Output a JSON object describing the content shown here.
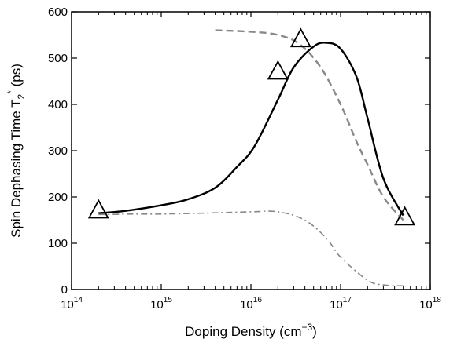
{
  "chart_data": {
    "type": "line",
    "title": "",
    "xlabel": {
      "text": "Doping Density (cm",
      "sup": "−3",
      "tail": ")"
    },
    "ylabel": {
      "text": "Spin Dephasing Time T",
      "sub": "2",
      "sup": "*",
      "tail": " (ps)"
    },
    "x_scale": "log",
    "xlim": [
      100000000000000.0,
      1e+18
    ],
    "ylim": [
      0,
      600
    ],
    "x_ticks": [
      {
        "value": 100000000000000.0,
        "base": "10",
        "exp": "14"
      },
      {
        "value": 1000000000000000.0,
        "base": "10",
        "exp": "15"
      },
      {
        "value": 1e+16,
        "base": "10",
        "exp": "16"
      },
      {
        "value": 1e+17,
        "base": "10",
        "exp": "17"
      },
      {
        "value": 1e+18,
        "base": "10",
        "exp": "18"
      }
    ],
    "y_ticks": [
      {
        "value": 0,
        "label": "0"
      },
      {
        "value": 100,
        "label": "100"
      },
      {
        "value": 200,
        "label": "200"
      },
      {
        "value": 300,
        "label": "300"
      },
      {
        "value": 400,
        "label": "400"
      },
      {
        "value": 500,
        "label": "500"
      },
      {
        "value": 600,
        "label": "600"
      }
    ],
    "grid": false,
    "legend": "none",
    "series": [
      {
        "style": "solid",
        "color": "#000000",
        "x": [
          200000000000000.0,
          400000000000000.0,
          1000000000000000.0,
          2000000000000000.0,
          4000000000000000.0,
          7000000000000000.0,
          1.1e+16,
          2e+16,
          3e+16,
          5e+16,
          7e+16,
          1e+17,
          1.5e+17,
          2e+17,
          3e+17,
          5e+17
        ],
        "y": [
          165,
          170,
          182,
          195,
          220,
          265,
          310,
          410,
          480,
          525,
          533,
          520,
          460,
          370,
          240,
          160
        ]
      },
      {
        "style": "dashed",
        "color": "#888888",
        "x": [
          4000000000000000.0,
          1e+16,
          2e+16,
          3.5e+16,
          6e+16,
          1e+17,
          1.5e+17,
          2e+17,
          3e+17,
          5e+17
        ],
        "y": [
          560,
          557,
          550,
          530,
          480,
          400,
          320,
          270,
          200,
          150
        ]
      },
      {
        "style": "dashdot",
        "color": "#888888",
        "x": [
          200000000000000.0,
          500000000000000.0,
          1000000000000000.0,
          3000000000000000.0,
          1e+16,
          2e+16,
          4e+16,
          7e+16,
          1e+17,
          2e+17,
          3e+17,
          5e+17
        ],
        "y": [
          162,
          163,
          163,
          165,
          168,
          168,
          150,
          110,
          70,
          20,
          10,
          8
        ]
      },
      {
        "style": "markers",
        "marker": "triangle",
        "color": "#000000",
        "x": [
          200000000000000.0,
          2e+16,
          3.6e+16,
          5.2e+17
        ],
        "y": [
          170,
          470,
          540,
          155
        ]
      }
    ]
  }
}
